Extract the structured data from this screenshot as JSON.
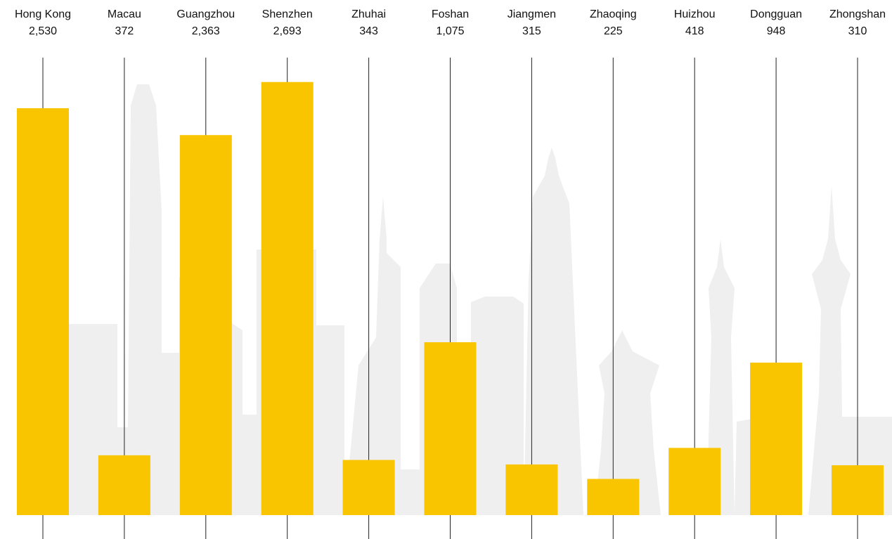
{
  "chart_data": {
    "type": "bar",
    "categories": [
      "Hong Kong",
      "Macau",
      "Guangzhou",
      "Shenzhen",
      "Zhuhai",
      "Foshan",
      "Jiangmen",
      "Zhaoqing",
      "Huizhou",
      "Dongguan",
      "Zhongshan"
    ],
    "values": [
      2530,
      372,
      2363,
      2693,
      343,
      1075,
      315,
      225,
      418,
      948,
      310
    ],
    "value_labels": [
      "2,530",
      "372",
      "2,363",
      "2,693",
      "343",
      "1,075",
      "315",
      "225",
      "418",
      "948",
      "310"
    ],
    "color": "#f9c500"
  }
}
